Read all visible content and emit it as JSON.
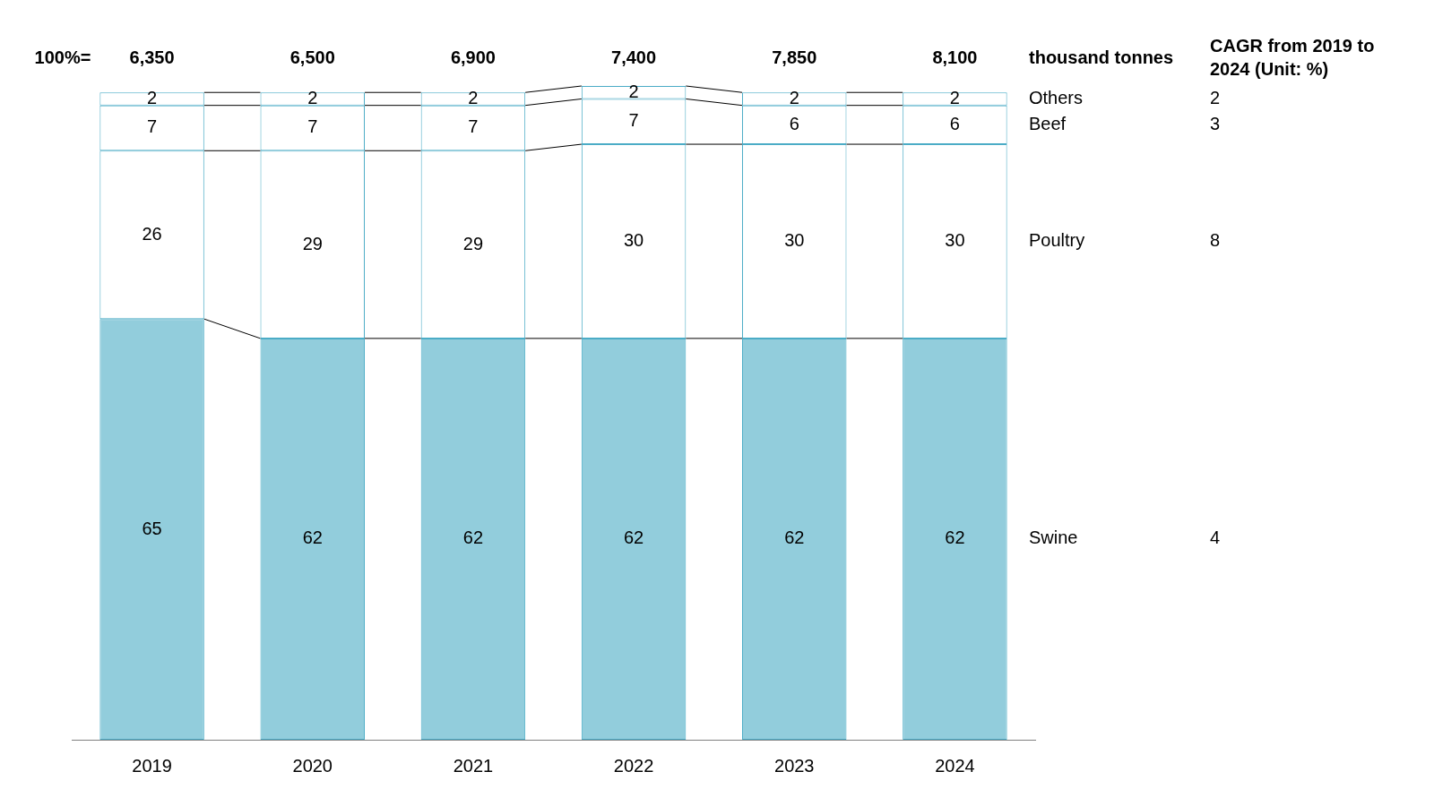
{
  "chart_data": {
    "type": "bar",
    "stacked": true,
    "data_labels": true,
    "tick_labels": "x",
    "grid": false,
    "categories": [
      "2019",
      "2020",
      "2021",
      "2022",
      "2023",
      "2024"
    ],
    "ylim": [
      0,
      101
    ],
    "totals_title": "100%=",
    "totals": [
      {
        "value": 6350,
        "label": "6,350"
      },
      {
        "value": 6500,
        "label": "6,500"
      },
      {
        "value": 6900,
        "label": "6,900"
      },
      {
        "value": 7400,
        "label": "7,400"
      },
      {
        "value": 7850,
        "label": "7,850"
      },
      {
        "value": 8100,
        "label": "8,100"
      }
    ],
    "unit": "thousand tonnes",
    "cagr_title": "CAGR from 2019 to 2024 (Unit: %)",
    "series": [
      {
        "name": "Swine",
        "color": "#92cddc",
        "values": [
          65,
          62,
          62,
          62,
          62,
          62
        ],
        "cagr": 4
      },
      {
        "name": "Poultry",
        "color": "#ffffff",
        "values": [
          26,
          29,
          29,
          30,
          30,
          30
        ],
        "cagr": 8
      },
      {
        "name": "Beef",
        "color": "#ffffff",
        "values": [
          7,
          7,
          7,
          7,
          6,
          6
        ],
        "cagr": 3
      },
      {
        "name": "Others",
        "color": "#ffffff",
        "values": [
          2,
          2,
          2,
          2,
          2,
          2
        ],
        "cagr": 2
      }
    ]
  }
}
